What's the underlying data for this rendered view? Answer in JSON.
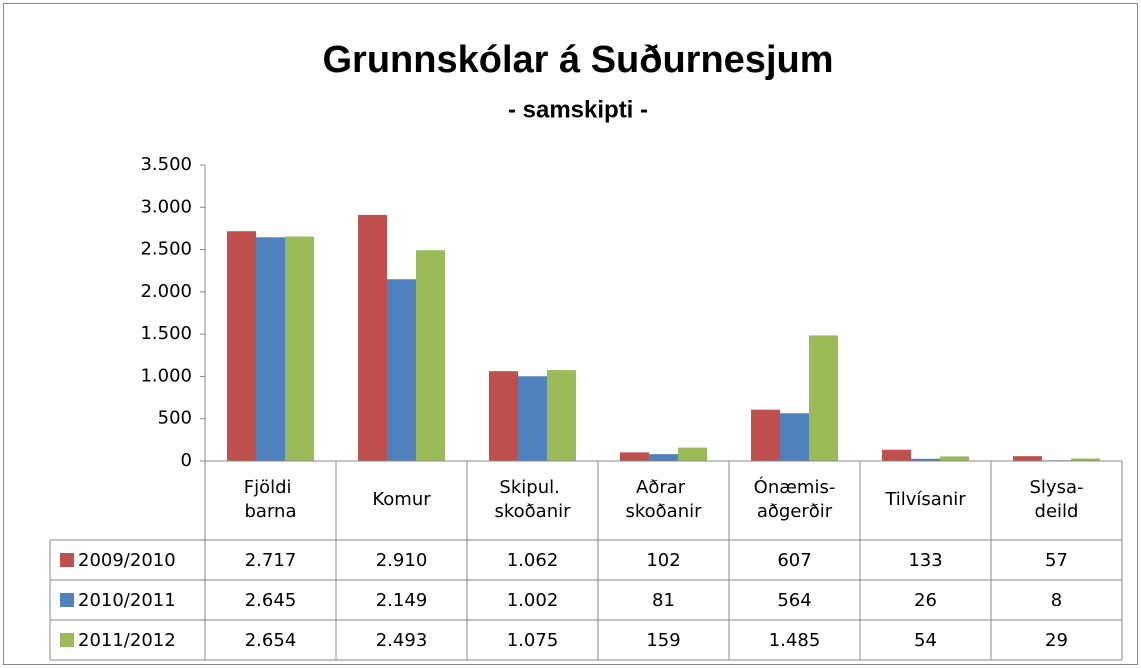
{
  "chart_data": {
    "type": "bar",
    "title": "Grunnskólar á Suðurnesjum",
    "subtitle": "- samskipti -",
    "categories": [
      "Fjöldi barna",
      "Komur",
      "Skipul. skoðanir",
      "Aðrar skoðanir",
      "Ónæmis-aðgerðir",
      "Tilvísanir",
      "Slysa-deild"
    ],
    "series": [
      {
        "name": "2009/2010",
        "color": "#c0504d",
        "values": [
          2717,
          2910,
          1062,
          102,
          607,
          133,
          57
        ],
        "value_labels": [
          "2.717",
          "2.910",
          "1.062",
          "102",
          "607",
          "133",
          "57"
        ]
      },
      {
        "name": "2010/2011",
        "color": "#4f81bd",
        "values": [
          2645,
          2149,
          1002,
          81,
          564,
          26,
          8
        ],
        "value_labels": [
          "2.645",
          "2.149",
          "1.002",
          "81",
          "564",
          "26",
          "8"
        ]
      },
      {
        "name": "2011/2012",
        "color": "#9bbb59",
        "values": [
          2654,
          2493,
          1075,
          159,
          1485,
          54,
          29
        ],
        "value_labels": [
          "2.654",
          "2.493",
          "1.075",
          "159",
          "1.485",
          "54",
          "29"
        ]
      }
    ],
    "ylim": [
      0,
      3500
    ],
    "yticks": [
      0,
      500,
      {
        "value": 1000,
        "label": "1.000"
      },
      {
        "value": 1500,
        "label": "1.500"
      },
      {
        "value": 2000,
        "label": "2.000"
      },
      {
        "value": 2500,
        "label": "2.500"
      },
      {
        "value": 3000,
        "label": "3.000"
      },
      {
        "value": 3500,
        "label": "3.500"
      }
    ]
  }
}
